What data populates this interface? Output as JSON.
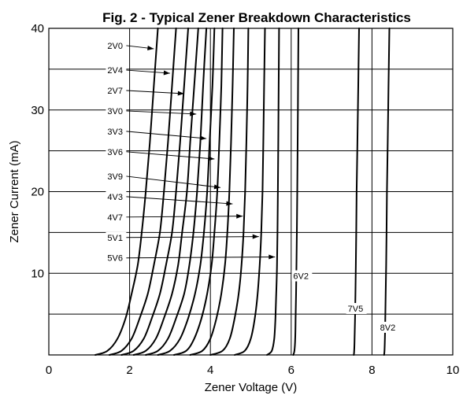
{
  "chart_data": {
    "type": "line",
    "title": "Fig. 2 - Typical Zener Breakdown Characteristics",
    "xlabel": "Zener Voltage (V)",
    "ylabel": "Zener Current (mA)",
    "xlim": [
      0,
      10
    ],
    "ylim": [
      0,
      40
    ],
    "x_ticks": [
      "0",
      "2",
      "4",
      "6",
      "8",
      "10"
    ],
    "y_ticks": [
      "10",
      "20",
      "30",
      "40"
    ],
    "grid": "horizontal every 5 mA, vertical every 2 V",
    "series": [
      {
        "name": "2V0",
        "x": [
          1.15,
          1.45,
          1.7,
          1.9,
          2.05,
          2.2,
          2.3,
          2.4,
          2.5,
          2.6,
          2.7
        ],
        "y": [
          0,
          0.5,
          2,
          4.5,
          7.5,
          11,
          15,
          20,
          26,
          33,
          40
        ]
      },
      {
        "name": "2V4",
        "x": [
          1.5,
          1.8,
          2.05,
          2.25,
          2.45,
          2.6,
          2.75,
          2.85,
          2.95,
          3.05,
          3.15
        ],
        "y": [
          0,
          0.5,
          2,
          4.5,
          7.5,
          11,
          15,
          20,
          26,
          33,
          40
        ]
      },
      {
        "name": "2V7",
        "x": [
          1.8,
          2.1,
          2.35,
          2.55,
          2.75,
          2.9,
          3.05,
          3.15,
          3.25,
          3.35,
          3.45
        ],
        "y": [
          0,
          0.5,
          2,
          4.5,
          7.5,
          11,
          15,
          20,
          26,
          33,
          40
        ]
      },
      {
        "name": "3V0",
        "x": [
          2.1,
          2.4,
          2.65,
          2.85,
          3.05,
          3.2,
          3.3,
          3.42,
          3.5,
          3.6,
          3.7
        ],
        "y": [
          0,
          0.5,
          2,
          4.5,
          7.5,
          11,
          15,
          20,
          26,
          33,
          40
        ]
      },
      {
        "name": "3V3",
        "x": [
          2.4,
          2.7,
          2.95,
          3.15,
          3.35,
          3.48,
          3.58,
          3.67,
          3.75,
          3.82,
          3.9
        ],
        "y": [
          0,
          0.5,
          2,
          4.5,
          7.5,
          11,
          15,
          20,
          26,
          33,
          40
        ]
      },
      {
        "name": "3V6",
        "x": [
          2.7,
          3.0,
          3.25,
          3.45,
          3.62,
          3.75,
          3.84,
          3.92,
          3.98,
          4.05,
          4.1
        ],
        "y": [
          0,
          0.5,
          2,
          4.5,
          7.5,
          11,
          15,
          20,
          26,
          33,
          40
        ]
      },
      {
        "name": "3V9",
        "x": [
          3.1,
          3.4,
          3.6,
          3.78,
          3.92,
          4.03,
          4.1,
          4.17,
          4.22,
          4.27,
          4.3
        ],
        "y": [
          0,
          0.5,
          2,
          4.5,
          7.5,
          11,
          15,
          20,
          26,
          33,
          40
        ]
      },
      {
        "name": "4V3",
        "x": [
          3.5,
          3.8,
          4.0,
          4.15,
          4.27,
          4.36,
          4.42,
          4.47,
          4.51,
          4.55,
          4.58
        ],
        "y": [
          0,
          0.5,
          2,
          4.5,
          7.5,
          11,
          15,
          20,
          26,
          33,
          40
        ]
      },
      {
        "name": "4V7",
        "x": [
          4.0,
          4.3,
          4.48,
          4.6,
          4.7,
          4.77,
          4.82,
          4.86,
          4.89,
          4.92,
          4.94
        ],
        "y": [
          0,
          0.5,
          2,
          4.5,
          7.5,
          11,
          15,
          20,
          26,
          33,
          40
        ]
      },
      {
        "name": "5V1",
        "x": [
          4.6,
          4.85,
          5.0,
          5.1,
          5.17,
          5.22,
          5.26,
          5.29,
          5.31,
          5.33,
          5.35
        ],
        "y": [
          0,
          0.5,
          2,
          4.5,
          7.5,
          11,
          15,
          20,
          26,
          33,
          40
        ]
      },
      {
        "name": "5V6",
        "x": [
          5.4,
          5.52,
          5.58,
          5.61,
          5.63,
          5.65,
          5.66,
          5.67,
          5.68,
          5.69,
          5.7
        ],
        "y": [
          0,
          0.5,
          2,
          4.5,
          7.5,
          11,
          15,
          20,
          26,
          33,
          40
        ]
      },
      {
        "name": "6V2",
        "x": [
          6.05,
          6.08,
          6.1,
          6.11,
          6.12,
          6.13,
          6.14,
          6.15,
          6.16,
          6.17,
          6.18
        ],
        "y": [
          0,
          0.5,
          2,
          4.5,
          7.5,
          11,
          15,
          20,
          26,
          33,
          40
        ]
      },
      {
        "name": "7V5",
        "x": [
          7.55,
          7.56,
          7.57,
          7.58,
          7.59,
          7.6,
          7.61,
          7.62,
          7.64,
          7.66,
          7.68
        ],
        "y": [
          0,
          0.5,
          2,
          4.5,
          7.5,
          11,
          15,
          20,
          26,
          33,
          40
        ]
      },
      {
        "name": "8V2",
        "x": [
          8.3,
          8.31,
          8.32,
          8.33,
          8.34,
          8.35,
          8.36,
          8.37,
          8.39,
          8.41,
          8.43
        ],
        "y": [
          0,
          0.5,
          2,
          4.5,
          7.5,
          11,
          15,
          20,
          26,
          33,
          40
        ]
      }
    ],
    "curve_labels": [
      {
        "text": "2V0",
        "label_at": [
          1.45,
          37.5
        ],
        "arrow_to": [
          2.6,
          37.5
        ]
      },
      {
        "text": "2V4",
        "label_at": [
          1.45,
          34.5
        ],
        "arrow_to": [
          3.0,
          34.5
        ]
      },
      {
        "text": "2V7",
        "label_at": [
          1.45,
          32.0
        ],
        "arrow_to": [
          3.35,
          32.0
        ]
      },
      {
        "text": "3V0",
        "label_at": [
          1.45,
          29.5
        ],
        "arrow_to": [
          3.65,
          29.5
        ]
      },
      {
        "text": "3V3",
        "label_at": [
          1.45,
          27.0
        ],
        "arrow_to": [
          3.9,
          26.5
        ]
      },
      {
        "text": "3V6",
        "label_at": [
          1.45,
          24.5
        ],
        "arrow_to": [
          4.1,
          24.0
        ]
      },
      {
        "text": "3V9",
        "label_at": [
          1.45,
          21.5
        ],
        "arrow_to": [
          4.25,
          20.5
        ]
      },
      {
        "text": "4V3",
        "label_at": [
          1.45,
          19.0
        ],
        "arrow_to": [
          4.55,
          18.5
        ]
      },
      {
        "text": "4V7",
        "label_at": [
          1.45,
          16.5
        ],
        "arrow_to": [
          4.8,
          17.0
        ]
      },
      {
        "text": "5V1",
        "label_at": [
          1.45,
          14.0
        ],
        "arrow_to": [
          5.2,
          14.5
        ]
      },
      {
        "text": "5V6",
        "label_at": [
          1.45,
          11.5
        ],
        "arrow_to": [
          5.6,
          12.0
        ]
      },
      {
        "text": "6V2",
        "label_at": [
          6.05,
          9.3
        ]
      },
      {
        "text": "7V5",
        "label_at": [
          7.4,
          5.3
        ]
      },
      {
        "text": "8V2",
        "label_at": [
          8.2,
          3.0
        ]
      }
    ]
  }
}
